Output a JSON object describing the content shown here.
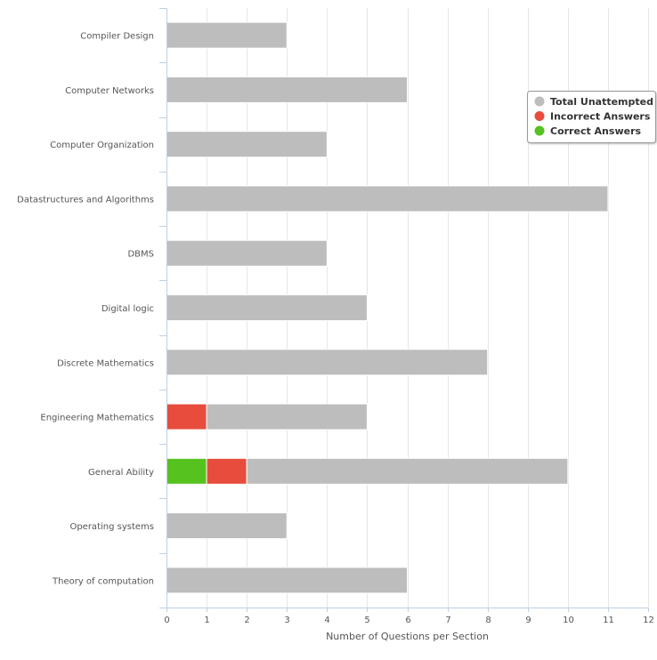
{
  "chart_data": {
    "type": "bar",
    "orientation": "horizontal",
    "stacked": true,
    "categories": [
      "Compiler Design",
      "Computer Networks",
      "Computer Organization",
      "Datastructures and Algorithms",
      "DBMS",
      "Digital logic",
      "Discrete Mathematics",
      "Engineering Mathematics",
      "General Ability",
      "Operating systems",
      "Theory of computation"
    ],
    "series": [
      {
        "name": "Correct Answers",
        "color": "#56c21f",
        "values": [
          0,
          0,
          0,
          0,
          0,
          0,
          0,
          0,
          1,
          0,
          0
        ]
      },
      {
        "name": "Incorrect Answers",
        "color": "#e74c3c",
        "values": [
          0,
          0,
          0,
          0,
          0,
          0,
          0,
          1,
          1,
          0,
          0
        ]
      },
      {
        "name": "Total Unattempted",
        "color": "#bdbdbd",
        "values": [
          3,
          6,
          4,
          11,
          4,
          5,
          8,
          4,
          8,
          3,
          6
        ]
      }
    ],
    "legend_order": [
      "Total Unattempted",
      "Incorrect Answers",
      "Correct Answers"
    ],
    "xlabel": "Number of Questions per Section",
    "xlim": [
      0,
      12
    ],
    "xticks": [
      "0",
      "1",
      "2",
      "3",
      "4",
      "5",
      "6",
      "7",
      "8",
      "9",
      "10",
      "11",
      "12"
    ],
    "grid": true,
    "legend_position": "top-right"
  }
}
